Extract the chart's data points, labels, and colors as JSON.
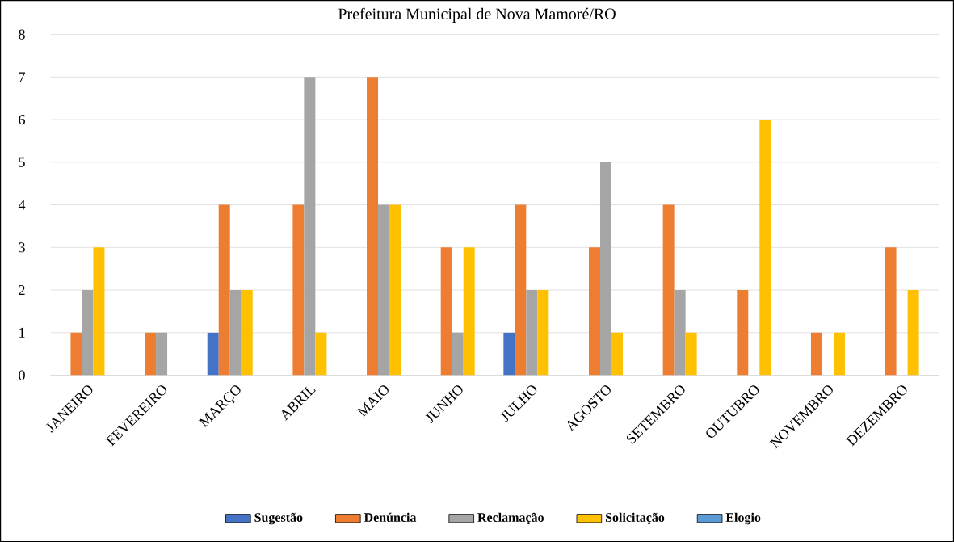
{
  "chart_data": {
    "type": "bar",
    "title": "Prefeitura Municipal de Nova Mamoré/RO",
    "categories": [
      "JANEIRO",
      "FEVEREIRO",
      "MARÇO",
      "ABRIL",
      "MAIO",
      "JUNHO",
      "JULHO",
      "AGOSTO",
      "SETEMBRO",
      "OUTUBRO",
      "NOVEMBRO",
      "DEZEMBRO"
    ],
    "series": [
      {
        "name": "Sugestão",
        "color": "#4472c4",
        "values": [
          0,
          0,
          1,
          0,
          0,
          0,
          1,
          0,
          0,
          0,
          0,
          0
        ]
      },
      {
        "name": "Denúncia",
        "color": "#ed7d31",
        "values": [
          1,
          1,
          4,
          4,
          7,
          3,
          4,
          3,
          4,
          2,
          1,
          3
        ]
      },
      {
        "name": "Reclamação",
        "color": "#a5a5a5",
        "values": [
          2,
          1,
          2,
          7,
          4,
          1,
          2,
          5,
          2,
          0,
          0,
          0
        ]
      },
      {
        "name": "Solicitação",
        "color": "#ffc000",
        "values": [
          3,
          0,
          2,
          1,
          4,
          3,
          2,
          1,
          1,
          6,
          1,
          2
        ]
      },
      {
        "name": "Elogio",
        "color": "#5b9bd5",
        "values": [
          0,
          0,
          0,
          0,
          0,
          0,
          0,
          0,
          0,
          0,
          0,
          0
        ]
      }
    ],
    "ylim": [
      0,
      8
    ],
    "yticks": [
      0,
      1,
      2,
      3,
      4,
      5,
      6,
      7,
      8
    ],
    "grid": "y",
    "legend": "bottom"
  }
}
